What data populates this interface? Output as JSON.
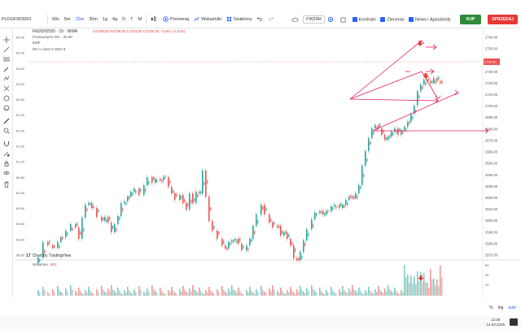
{
  "toolbar": {
    "symbol": "PLDGF003001",
    "intervals": [
      "60s",
      "5m",
      "15m",
      "30m",
      "1g",
      "4g",
      "D",
      "T",
      "M"
    ],
    "active_interval": "15m",
    "compare_label": "Porównaj",
    "indicators_label": "Wskaźniki",
    "templates_label": "Szablony",
    "account_select": "FW20H",
    "checkbox_contract": "Kontrakt",
    "checkbox_orders": "Zlecenia",
    "checkbox_news": "News i Ąpasiendy",
    "buy_label": "KUP",
    "sell_label": "SPRZEDAJ"
  },
  "legend": {
    "title": "FW20H2520 · 15 · WWA",
    "ohlc": "O2729,00 H2739,00 L2724,00 C2726,00 −3,00 (−0,11%)",
    "line2": "Przesunięcie MA · 30 50",
    "line3": "EMF",
    "line4": "MA 1 close 0 SMA 9"
  },
  "branding": {
    "mark": "17",
    "text": "Chart by TradingView"
  },
  "volume_label": {
    "text": "Wolumen",
    "value": "601"
  },
  "price_axis_labels": [
    "2760,00",
    "2750,00",
    "2740,00",
    "2730,00",
    "2720,00",
    "2710,00",
    "2700,00",
    "2690,00",
    "2680,00",
    "2670,00",
    "2660,00",
    "2650,00",
    "2640,00",
    "2630,00",
    "2620,00",
    "2610,00",
    "2600,00",
    "2590,00",
    "2580,00",
    "2570,00"
  ],
  "left_axis_labels": [
    "64.40",
    "64.00",
    "63.60",
    "63.20",
    "62.80",
    "62.40",
    "62.00",
    "61.60",
    "61.20",
    "60.80",
    "60.40",
    "60.00",
    "59.60",
    "59.20",
    "58.80"
  ],
  "current_price": "2726,00",
  "volume_axis_labels": [
    "60",
    "40",
    "20"
  ],
  "bottom_tools": [
    "%",
    "log",
    "auto"
  ],
  "clock": {
    "time": "12:28",
    "date": "14.03.2025"
  },
  "colors": {
    "up": "#26a69a",
    "down": "#ef5350",
    "drawing": "#e91e63",
    "buy": "#2e8b3b",
    "sell": "#e53935",
    "accent": "#2962ff"
  },
  "icons": {
    "crosshair": "crosshair-icon",
    "trendline": "trendline-icon",
    "fib": "fibonacci-icon",
    "brush": "brush-icon",
    "text": "text-icon",
    "pattern": "pattern-icon",
    "measure": "ruler-icon",
    "zoom": "zoom-icon",
    "magnet": "magnet-icon",
    "lock": "lock-icon",
    "eye": "eye-icon",
    "trash": "trash-icon"
  }
}
